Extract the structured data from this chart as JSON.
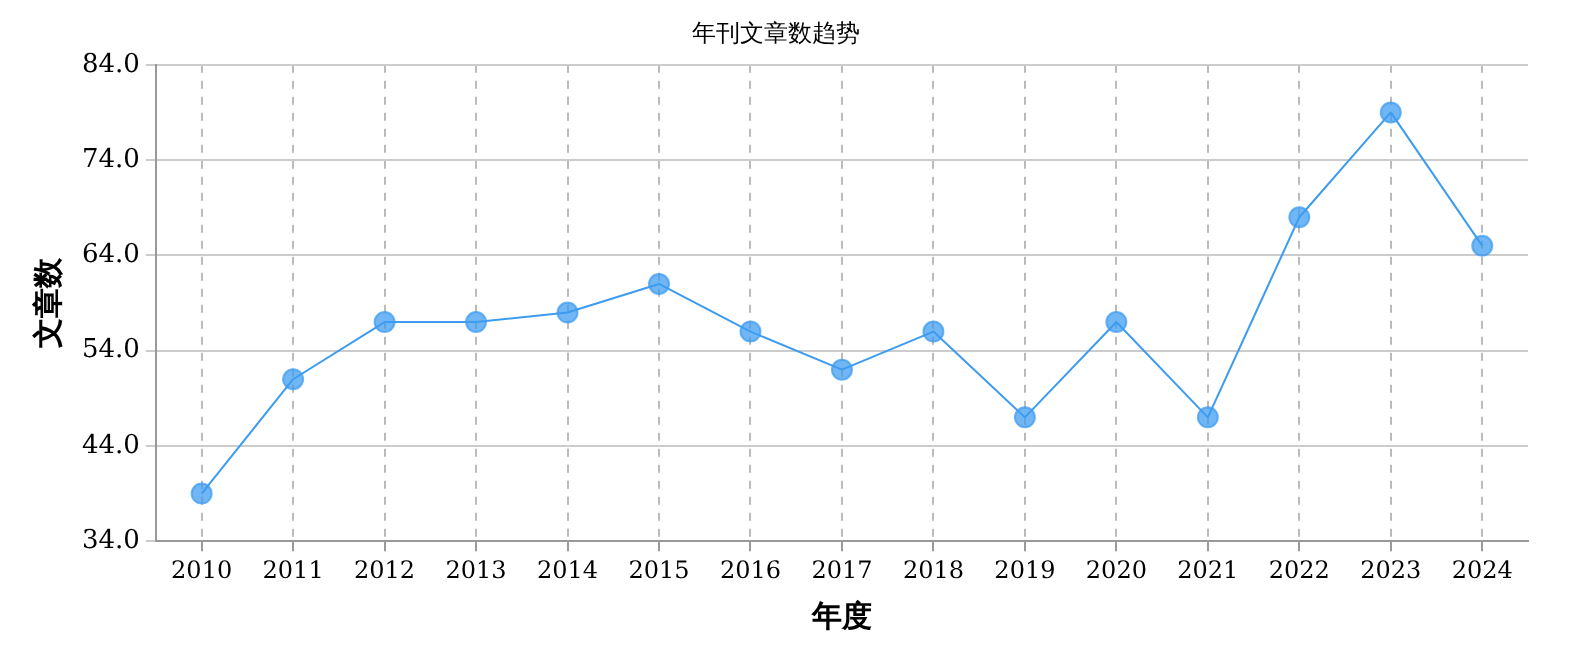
{
  "chart_data": {
    "type": "line",
    "title": "年刊文章数趋势",
    "xlabel": "年度",
    "ylabel": "文章数",
    "categories": [
      "2010",
      "2011",
      "2012",
      "2013",
      "2014",
      "2015",
      "2016",
      "2017",
      "2018",
      "2019",
      "2020",
      "2021",
      "2022",
      "2023",
      "2024"
    ],
    "series": [
      {
        "color": "#3d9bf0",
        "values": [
          39,
          51,
          57,
          57,
          58,
          61,
          56,
          52,
          56,
          47,
          57,
          47,
          68,
          79,
          65
        ]
      }
    ],
    "ylim": [
      34,
      84
    ],
    "yticks": [
      {
        "value": 34,
        "label": "34.0"
      },
      {
        "value": 44,
        "label": "44.0"
      },
      {
        "value": 54,
        "label": "54.0"
      },
      {
        "value": 64,
        "label": "64.0"
      },
      {
        "value": 74,
        "label": "74.0"
      },
      {
        "value": 84,
        "label": "84.0"
      }
    ],
    "grid": true,
    "legend": false,
    "marker": "circle",
    "line_style": "solid"
  }
}
